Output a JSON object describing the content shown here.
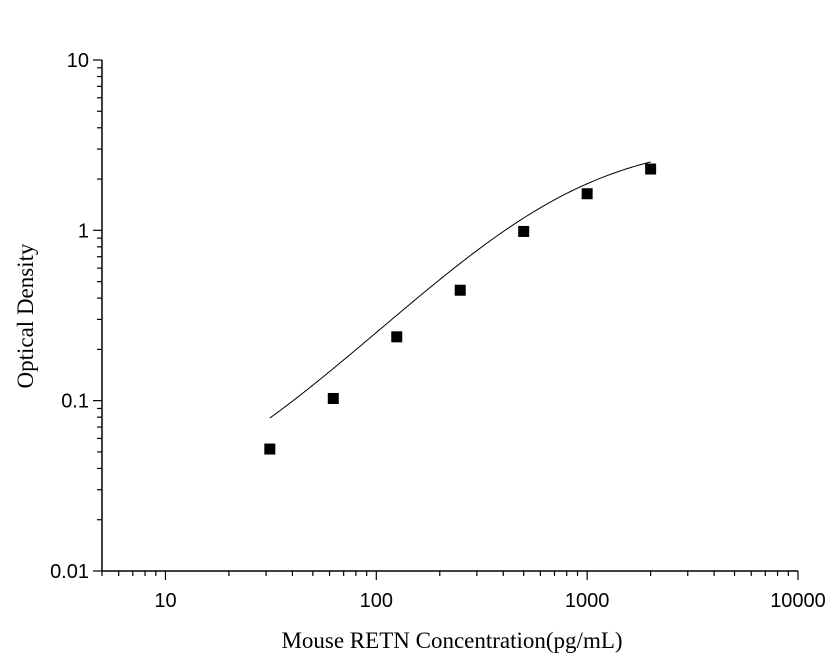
{
  "chart_data": {
    "type": "scatter",
    "title": "",
    "xlabel": "Mouse RETN Concentration(pg/mL)",
    "ylabel": "Optical Density",
    "xscale": "log",
    "yscale": "log",
    "xlim": [
      5,
      10000
    ],
    "ylim": [
      0.01,
      10
    ],
    "xticks": [
      10,
      100,
      1000,
      10000
    ],
    "xtick_labels": [
      "10",
      "100",
      "1000",
      "10000"
    ],
    "yticks": [
      0.01,
      0.1,
      1,
      10
    ],
    "ytick_labels": [
      "0.01",
      "0.1",
      "1",
      "10"
    ],
    "grid": false,
    "legend": "none",
    "series": [
      {
        "x": [
          31.25,
          62.5,
          125,
          250,
          500,
          1000,
          2000
        ],
        "y": [
          0.052,
          0.103,
          0.237,
          0.445,
          0.985,
          1.64,
          2.29
        ],
        "marker": "square",
        "color": "#000000"
      }
    ],
    "fit_curve": {
      "type": "4PL",
      "A": 0.02,
      "B": 1.22,
      "C": 850,
      "D": 3.4,
      "x_range": [
        31.25,
        2000
      ],
      "color": "#000000"
    }
  }
}
